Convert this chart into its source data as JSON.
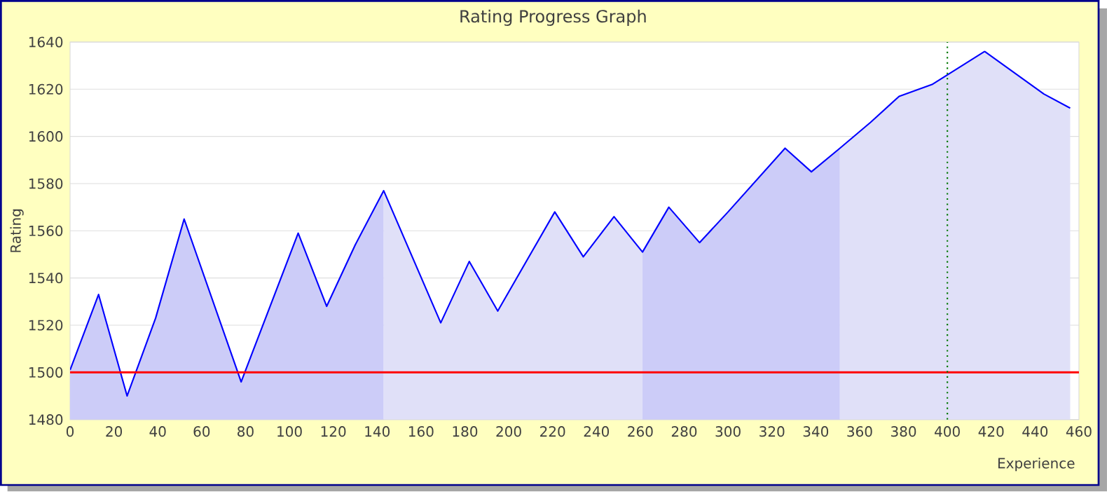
{
  "chart_data": {
    "type": "line",
    "title": "Rating Progress Graph",
    "xlabel": "Experience",
    "ylabel": "Rating",
    "xlim": [
      0,
      460
    ],
    "xticks": [
      0,
      20,
      40,
      60,
      80,
      100,
      120,
      140,
      160,
      180,
      200,
      220,
      240,
      260,
      280,
      300,
      320,
      340,
      360,
      380,
      400,
      420,
      440,
      460
    ],
    "ylim": [
      1480,
      1640
    ],
    "yticks": [
      1480,
      1500,
      1520,
      1540,
      1560,
      1580,
      1600,
      1620,
      1640
    ],
    "grid": "y",
    "marker": "none",
    "line_style": "solid",
    "series": [
      {
        "type": "area",
        "color": "#ccccf8",
        "x": [
          0,
          13,
          26,
          39,
          52,
          78,
          104,
          117,
          130,
          143
        ],
        "values": [
          1501,
          1533,
          1490,
          1523,
          1565,
          1496,
          1559,
          1528,
          1554,
          1577
        ]
      },
      {
        "type": "area",
        "color": "#e0e0f8",
        "x": [
          143,
          156,
          169,
          182,
          195,
          221,
          234,
          248,
          261
        ],
        "values": [
          1577,
          1549,
          1521,
          1547,
          1526,
          1568,
          1549,
          1566,
          1551
        ]
      },
      {
        "type": "area",
        "color": "#ccccf8",
        "x": [
          261,
          273,
          287,
          300,
          326,
          338,
          351
        ],
        "values": [
          1551,
          1570,
          1555,
          1568,
          1595,
          1585,
          1595
        ]
      },
      {
        "type": "area",
        "color": "#e0e0f8",
        "x": [
          351,
          365,
          378,
          393,
          417,
          444,
          456
        ],
        "values": [
          1595,
          1606,
          1617,
          1622,
          1636,
          1618,
          1612
        ]
      },
      {
        "color": "#0000ff",
        "x": [
          0,
          13,
          26,
          39,
          52,
          78,
          104,
          117,
          130,
          143,
          156,
          169,
          182,
          195,
          221,
          234,
          248,
          261,
          273,
          287,
          300,
          326,
          338,
          351,
          365,
          378,
          393,
          417,
          444,
          456
        ],
        "values": [
          1501,
          1533,
          1490,
          1523,
          1565,
          1496,
          1559,
          1528,
          1554,
          1577,
          1549,
          1521,
          1547,
          1526,
          1568,
          1549,
          1566,
          1551,
          1570,
          1555,
          1568,
          1595,
          1585,
          1595,
          1606,
          1617,
          1622,
          1636,
          1618,
          1612
        ]
      }
    ],
    "ref_lines": [
      {
        "axis": "y",
        "value": 1500,
        "color": "#ff0000",
        "line_style": "solid"
      },
      {
        "axis": "x",
        "value": 400,
        "color": "#007700",
        "line_style": "dotted"
      }
    ]
  }
}
